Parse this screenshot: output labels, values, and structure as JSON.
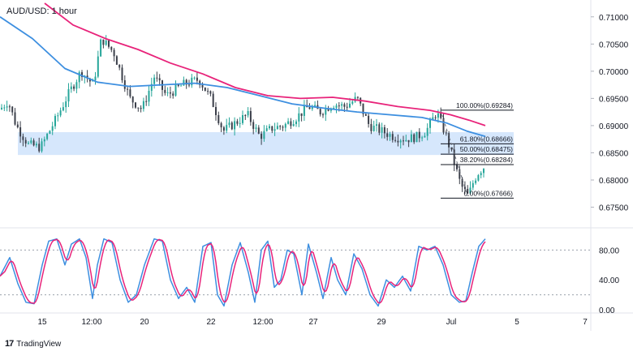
{
  "title": "AUD/USD: 1 hour",
  "brand": "TradingView",
  "colors": {
    "up": "#26a69a",
    "down": "#3b3f4a",
    "ma_fast": "#3d8fe0",
    "ma_slow": "#e8237a",
    "zone": "#cfe3fb",
    "stoch_k": "#3d8fe0",
    "stoch_d": "#e8237a"
  },
  "chart_data": [
    {
      "type": "candlestick",
      "title": "AUD/USD: 1 hour",
      "ylim": [
        0.6715,
        0.7125
      ],
      "x_ticks": [
        "15",
        "12:00",
        "20",
        "22",
        "12:00",
        "27",
        "29",
        "Jul",
        "5",
        "7"
      ],
      "y_ticks": [
        "0.71000",
        "0.70500",
        "0.70000",
        "0.69500",
        "0.69000",
        "0.68500",
        "0.68000",
        "0.67500"
      ],
      "price_path": [
        [
          0,
          0.693
        ],
        [
          10,
          0.6945
        ],
        [
          20,
          0.69
        ],
        [
          35,
          0.6865
        ],
        [
          50,
          0.686
        ],
        [
          70,
          0.6915
        ],
        [
          85,
          0.696
        ],
        [
          100,
          0.7
        ],
        [
          115,
          0.6975
        ],
        [
          125,
          0.706
        ],
        [
          140,
          0.7035
        ],
        [
          160,
          0.695
        ],
        [
          175,
          0.693
        ],
        [
          190,
          0.699
        ],
        [
          205,
          0.6955
        ],
        [
          225,
          0.6975
        ],
        [
          245,
          0.6985
        ],
        [
          260,
          0.695
        ],
        [
          275,
          0.689
        ],
        [
          290,
          0.6905
        ],
        [
          305,
          0.692
        ],
        [
          320,
          0.688
        ],
        [
          335,
          0.6895
        ],
        [
          350,
          0.69
        ],
        [
          365,
          0.6915
        ],
        [
          380,
          0.6935
        ],
        [
          395,
          0.6925
        ],
        [
          410,
          0.694
        ],
        [
          425,
          0.6935
        ],
        [
          440,
          0.695
        ],
        [
          455,
          0.69
        ],
        [
          470,
          0.689
        ],
        [
          485,
          0.688
        ],
        [
          500,
          0.6875
        ],
        [
          515,
          0.688
        ],
        [
          525,
          0.689
        ],
        [
          538,
          0.6925
        ],
        [
          550,
          0.688
        ],
        [
          560,
          0.683
        ],
        [
          568,
          0.679
        ],
        [
          577,
          0.677
        ],
        [
          584,
          0.68
        ],
        [
          590,
          0.6815
        ],
        [
          597,
          0.6825
        ]
      ],
      "ma_fast_path": [
        [
          0,
          0.71
        ],
        [
          40,
          0.706
        ],
        [
          80,
          0.7005
        ],
        [
          120,
          0.698
        ],
        [
          160,
          0.6972
        ],
        [
          200,
          0.6975
        ],
        [
          240,
          0.6978
        ],
        [
          280,
          0.697
        ],
        [
          320,
          0.6955
        ],
        [
          360,
          0.694
        ],
        [
          400,
          0.6932
        ],
        [
          440,
          0.6925
        ],
        [
          480,
          0.692
        ],
        [
          520,
          0.6915
        ],
        [
          550,
          0.6905
        ],
        [
          575,
          0.689
        ],
        [
          598,
          0.688
        ]
      ],
      "ma_slow_path": [
        [
          55,
          0.7125
        ],
        [
          90,
          0.7085
        ],
        [
          130,
          0.706
        ],
        [
          170,
          0.704
        ],
        [
          210,
          0.7015
        ],
        [
          250,
          0.6995
        ],
        [
          290,
          0.697
        ],
        [
          330,
          0.6955
        ],
        [
          370,
          0.695
        ],
        [
          410,
          0.6952
        ],
        [
          450,
          0.6945
        ],
        [
          490,
          0.6935
        ],
        [
          530,
          0.6928
        ],
        [
          555,
          0.692
        ],
        [
          578,
          0.691
        ],
        [
          598,
          0.69
        ]
      ],
      "support_zone": {
        "from": 0.6846,
        "to": 0.6888
      },
      "fibonacci": [
        {
          "label": "100.00%(0.69284)",
          "value": 0.69284
        },
        {
          "label": "61.80%(0.68666)",
          "value": 0.68666
        },
        {
          "label": "50.00%(0.68475)",
          "value": 0.68475
        },
        {
          "label": "38.20%(0.68284)",
          "value": 0.68284
        },
        {
          "label": "0.00%(0.67666)",
          "value": 0.67666
        }
      ]
    },
    {
      "type": "line",
      "name": "stochastic",
      "ylim": [
        0,
        100
      ],
      "y_ticks": [
        "80.00",
        "40.00",
        "0.00"
      ],
      "levels": [
        80,
        20
      ],
      "k_path": [
        [
          0,
          45
        ],
        [
          12,
          70
        ],
        [
          22,
          35
        ],
        [
          32,
          10
        ],
        [
          42,
          8
        ],
        [
          52,
          60
        ],
        [
          60,
          92
        ],
        [
          70,
          95
        ],
        [
          80,
          60
        ],
        [
          88,
          88
        ],
        [
          98,
          95
        ],
        [
          106,
          70
        ],
        [
          114,
          15
        ],
        [
          120,
          60
        ],
        [
          128,
          95
        ],
        [
          138,
          90
        ],
        [
          148,
          40
        ],
        [
          158,
          10
        ],
        [
          168,
          20
        ],
        [
          178,
          60
        ],
        [
          190,
          95
        ],
        [
          200,
          92
        ],
        [
          210,
          40
        ],
        [
          220,
          15
        ],
        [
          230,
          30
        ],
        [
          240,
          10
        ],
        [
          250,
          85
        ],
        [
          260,
          90
        ],
        [
          268,
          20
        ],
        [
          276,
          5
        ],
        [
          286,
          60
        ],
        [
          296,
          90
        ],
        [
          306,
          50
        ],
        [
          314,
          10
        ],
        [
          322,
          80
        ],
        [
          330,
          92
        ],
        [
          338,
          30
        ],
        [
          346,
          40
        ],
        [
          354,
          80
        ],
        [
          362,
          75
        ],
        [
          372,
          20
        ],
        [
          380,
          88
        ],
        [
          390,
          50
        ],
        [
          398,
          15
        ],
        [
          408,
          70
        ],
        [
          416,
          40
        ],
        [
          426,
          20
        ],
        [
          436,
          75
        ],
        [
          446,
          55
        ],
        [
          456,
          20
        ],
        [
          466,
          5
        ],
        [
          476,
          40
        ],
        [
          486,
          30
        ],
        [
          496,
          45
        ],
        [
          506,
          25
        ],
        [
          516,
          85
        ],
        [
          526,
          80
        ],
        [
          536,
          85
        ],
        [
          546,
          60
        ],
        [
          556,
          20
        ],
        [
          566,
          10
        ],
        [
          574,
          12
        ],
        [
          582,
          50
        ],
        [
          590,
          85
        ],
        [
          598,
          95
        ]
      ]
    }
  ]
}
